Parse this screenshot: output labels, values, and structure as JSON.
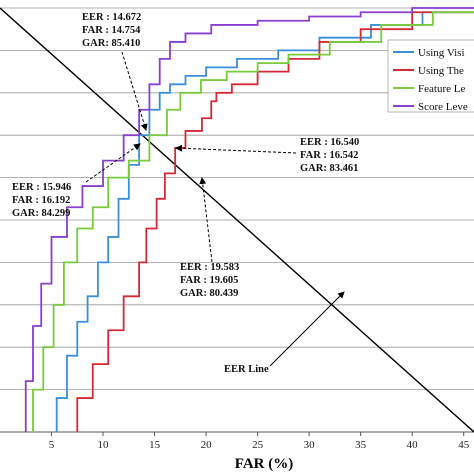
{
  "chart_data": {
    "type": "line",
    "xlabel": "FAR (%)",
    "ylabel": "",
    "xlim": [
      0,
      46
    ],
    "ylim": [
      0,
      100
    ],
    "x_ticks": [
      5,
      10,
      15,
      20,
      25,
      30,
      35,
      40,
      45
    ],
    "grid": "horizontal",
    "legend_position": "top-right",
    "series": [
      {
        "name": "Using Visi",
        "color": "#3b8fd8",
        "points": [
          [
            5.5,
            0
          ],
          [
            6.5,
            8
          ],
          [
            7.5,
            18
          ],
          [
            8.5,
            26
          ],
          [
            9.5,
            32
          ],
          [
            10.5,
            40
          ],
          [
            11.5,
            46
          ],
          [
            12.5,
            55
          ],
          [
            13.5,
            63
          ],
          [
            14.5,
            70
          ],
          [
            15.5,
            76
          ],
          [
            16.5,
            80
          ],
          [
            18,
            82
          ],
          [
            20,
            84
          ],
          [
            23,
            86
          ],
          [
            27,
            88
          ],
          [
            31,
            90
          ],
          [
            36,
            93
          ],
          [
            41,
            96
          ],
          [
            46,
            99
          ]
        ]
      },
      {
        "name": "Using The",
        "color": "#d42a35",
        "points": [
          [
            7.5,
            0
          ],
          [
            9,
            8
          ],
          [
            10.5,
            16
          ],
          [
            12,
            24
          ],
          [
            13.5,
            32
          ],
          [
            14.2,
            40
          ],
          [
            15.2,
            48
          ],
          [
            16,
            55
          ],
          [
            17,
            61
          ],
          [
            18,
            67
          ],
          [
            19.6,
            71
          ],
          [
            20.5,
            74
          ],
          [
            21,
            78
          ],
          [
            22.5,
            80
          ],
          [
            25,
            82
          ],
          [
            28,
            85
          ],
          [
            31,
            88
          ],
          [
            35,
            92
          ],
          [
            40,
            95
          ],
          [
            46,
            99
          ]
        ]
      },
      {
        "name": "Feature Le",
        "color": "#78cc3c",
        "points": [
          [
            3.2,
            0
          ],
          [
            4.2,
            10
          ],
          [
            5.2,
            20
          ],
          [
            6.2,
            30
          ],
          [
            7.5,
            40
          ],
          [
            9,
            48
          ],
          [
            10.5,
            53
          ],
          [
            12.5,
            60
          ],
          [
            14.5,
            64
          ],
          [
            16.2,
            70
          ],
          [
            17.5,
            76
          ],
          [
            19.5,
            80
          ],
          [
            22,
            83
          ],
          [
            25,
            85
          ],
          [
            28,
            87
          ],
          [
            32,
            89
          ],
          [
            37,
            92
          ],
          [
            42,
            96
          ],
          [
            46,
            99
          ]
        ]
      },
      {
        "name": "Score Leve",
        "color": "#8a3fcf",
        "points": [
          [
            2.5,
            0
          ],
          [
            3.2,
            12
          ],
          [
            4,
            25
          ],
          [
            5,
            35
          ],
          [
            6.5,
            46
          ],
          [
            8,
            53
          ],
          [
            10,
            58
          ],
          [
            12,
            64
          ],
          [
            13.5,
            70
          ],
          [
            14.5,
            76
          ],
          [
            15.5,
            82
          ],
          [
            16.5,
            88
          ],
          [
            18,
            92
          ],
          [
            20.5,
            94
          ],
          [
            25,
            96
          ],
          [
            30,
            97
          ],
          [
            35,
            98
          ],
          [
            40,
            99
          ],
          [
            46,
            100
          ]
        ]
      }
    ],
    "eer_line": {
      "label": "EER Line",
      "points": [
        [
          0,
          100
        ],
        [
          46,
          0
        ]
      ]
    },
    "annotations": [
      {
        "lines": [
          "EER : 14.672",
          "FAR : 14.754",
          "GAR: 85.410"
        ]
      },
      {
        "lines": [
          "EER : 16.540",
          "FAR : 16.542",
          "GAR: 83.461"
        ]
      },
      {
        "lines": [
          "EER : 15.946",
          "FAR : 16.192",
          "GAR: 84.299"
        ]
      },
      {
        "lines": [
          "EER : 19.583",
          "FAR : 19.605",
          "GAR: 80.439"
        ]
      }
    ]
  }
}
